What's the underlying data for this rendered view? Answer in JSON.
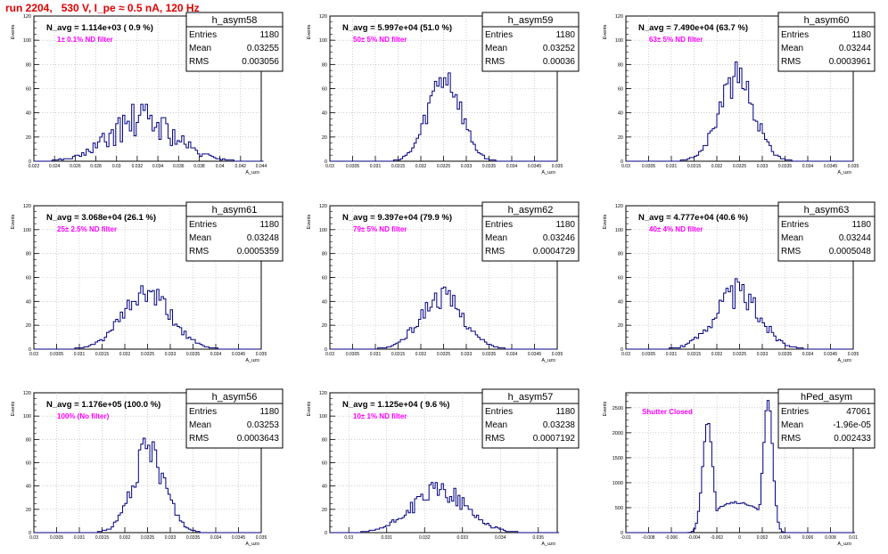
{
  "page_title": "run 2204,   530 V, I_pe ≈ 0.5 nA, 120 Hz",
  "colors": {
    "line": "#000080",
    "annotation": "#ff00ff",
    "title": "#e00000",
    "grid": "#b0b0b0"
  },
  "stat_labels": {
    "entries": "Entries",
    "mean": "Mean",
    "rms": "RMS"
  },
  "chart_data": [
    {
      "type": "bar",
      "name": "h_asym58",
      "header": "N_avg = 1.114e+03 ( 0.9 %)",
      "note": "1± 0.1% ND filter",
      "entries": "1180",
      "mean": "0.03255",
      "rms": "0.003056",
      "ylabel": "Events",
      "xlabel": "A_uzo",
      "xlim": [
        0.022,
        0.044
      ],
      "ylim": [
        0,
        120
      ],
      "yticks": [
        "0",
        "20",
        "40",
        "60",
        "80",
        "100",
        "120"
      ],
      "xticks": [
        "0.022",
        "0.024",
        "0.026",
        "0.028",
        "0.03",
        "0.032",
        "0.034",
        "0.036",
        "0.038",
        "0.04",
        "0.042",
        "0.044"
      ],
      "center": 0.0325,
      "sigma": 0.0031,
      "peak": 34,
      "bin": 0.00022,
      "seed": 58,
      "noise": 0.45
    },
    {
      "type": "bar",
      "name": "h_asym59",
      "header": "N_avg = 5.997e+04 (51.0 %)",
      "note": "50± 5% ND filter",
      "entries": "1180",
      "mean": "0.03252",
      "rms": "0.00036",
      "ylabel": "Events",
      "xlabel": "A_uzo",
      "xlim": [
        0.03,
        0.035
      ],
      "ylim": [
        0,
        120
      ],
      "yticks": [
        "0",
        "20",
        "40",
        "60",
        "80",
        "100",
        "120"
      ],
      "xticks": [
        "0.03",
        "0.0305",
        "0.031",
        "0.0315",
        "0.032",
        "0.0325",
        "0.033",
        "0.0335",
        "0.034",
        "0.0345",
        "0.035"
      ],
      "center": 0.03252,
      "sigma": 0.00036,
      "peak": 70,
      "bin": 5e-05,
      "seed": 59,
      "noise": 0.22
    },
    {
      "type": "bar",
      "name": "h_asym60",
      "header": "N_avg = 7.490e+04 (63.7 %)",
      "note": "63± 5% ND filter",
      "entries": "1180",
      "mean": "0.03244",
      "rms": "0.0003961",
      "ylabel": "Events",
      "xlabel": "A_uzo",
      "xlim": [
        0.03,
        0.035
      ],
      "ylim": [
        0,
        120
      ],
      "yticks": [
        "0",
        "20",
        "40",
        "60",
        "80",
        "100",
        "120"
      ],
      "xticks": [
        "0.03",
        "0.0305",
        "0.031",
        "0.0315",
        "0.032",
        "0.0325",
        "0.033",
        "0.0335",
        "0.034",
        "0.0345",
        "0.035"
      ],
      "center": 0.03244,
      "sigma": 0.00039,
      "peak": 68,
      "bin": 5e-05,
      "seed": 60,
      "noise": 0.22
    },
    {
      "type": "bar",
      "name": "h_asym61",
      "header": "N_avg = 3.068e+04 (26.1 %)",
      "note": "25± 2.5% ND filter",
      "entries": "1180",
      "mean": "0.03248",
      "rms": "0.0005359",
      "ylabel": "Events",
      "xlabel": "A_uzo",
      "xlim": [
        0.03,
        0.035
      ],
      "ylim": [
        0,
        120
      ],
      "yticks": [
        "0",
        "20",
        "40",
        "60",
        "80",
        "100",
        "120"
      ],
      "xticks": [
        "0.03",
        "0.0305",
        "0.031",
        "0.0315",
        "0.032",
        "0.0325",
        "0.033",
        "0.0335",
        "0.034",
        "0.0345",
        "0.035"
      ],
      "center": 0.03248,
      "sigma": 0.00053,
      "peak": 46,
      "bin": 5e-05,
      "seed": 61,
      "noise": 0.22
    },
    {
      "type": "bar",
      "name": "h_asym62",
      "header": "N_avg = 9.397e+04 (79.9 %)",
      "note": "79± 5% ND filter",
      "entries": "1180",
      "mean": "0.03246",
      "rms": "0.0004729",
      "ylabel": "Events",
      "xlabel": "A_uzo",
      "xlim": [
        0.03,
        0.035
      ],
      "ylim": [
        0,
        120
      ],
      "yticks": [
        "0",
        "20",
        "40",
        "60",
        "80",
        "100",
        "120"
      ],
      "xticks": [
        "0.03",
        "0.0305",
        "0.031",
        "0.0315",
        "0.032",
        "0.0325",
        "0.033",
        "0.0335",
        "0.034",
        "0.0345",
        "0.035"
      ],
      "center": 0.03246,
      "sigma": 0.00047,
      "peak": 44,
      "bin": 5e-05,
      "seed": 62,
      "noise": 0.22
    },
    {
      "type": "bar",
      "name": "h_asym63",
      "header": "N_avg = 4.777e+04 (40.6 %)",
      "note": "40± 4% ND filter",
      "entries": "1180",
      "mean": "0.03244",
      "rms": "0.0005048",
      "ylabel": "Events",
      "xlabel": "A_uzo",
      "xlim": [
        0.03,
        0.035
      ],
      "ylim": [
        0,
        120
      ],
      "yticks": [
        "0",
        "20",
        "40",
        "60",
        "80",
        "100",
        "120"
      ],
      "xticks": [
        "0.03",
        "0.0305",
        "0.031",
        "0.0315",
        "0.032",
        "0.0325",
        "0.033",
        "0.0335",
        "0.034",
        "0.0345",
        "0.035"
      ],
      "center": 0.03244,
      "sigma": 0.0005,
      "peak": 46,
      "bin": 5e-05,
      "seed": 63,
      "noise": 0.28
    },
    {
      "type": "bar",
      "name": "h_asym56",
      "header": "N_avg = 1.176e+05 (100.0 %)",
      "note": "100% (No filter)",
      "entries": "1180",
      "mean": "0.03253",
      "rms": "0.0003643",
      "ylabel": "Events",
      "xlabel": "A_uzo",
      "xlim": [
        0.03,
        0.035
      ],
      "ylim": [
        0,
        120
      ],
      "yticks": [
        "0",
        "20",
        "40",
        "60",
        "80",
        "100",
        "120"
      ],
      "xticks": [
        "0.03",
        "0.0305",
        "0.031",
        "0.0315",
        "0.032",
        "0.0325",
        "0.033",
        "0.0335",
        "0.034",
        "0.0345",
        "0.035"
      ],
      "center": 0.03253,
      "sigma": 0.00036,
      "peak": 68,
      "bin": 5e-05,
      "seed": 56,
      "noise": 0.24
    },
    {
      "type": "bar",
      "name": "h_asym57",
      "header": "N_avg = 1.125e+04 ( 9.6 %)",
      "note": "10± 1% ND filter",
      "entries": "1180",
      "mean": "0.03238",
      "rms": "0.0007192",
      "ylabel": "Events",
      "xlabel": "A_uzo",
      "xlim": [
        0.0295,
        0.0355
      ],
      "ylim": [
        0,
        120
      ],
      "yticks": [
        "0",
        "20",
        "40",
        "60",
        "80",
        "100",
        "120"
      ],
      "xticks": [
        "0.03",
        "0.031",
        "0.032",
        "0.033",
        "0.034",
        "0.035"
      ],
      "center": 0.03238,
      "sigma": 0.00072,
      "peak": 36,
      "bin": 5.45e-05,
      "seed": 57,
      "noise": 0.25
    },
    {
      "type": "bar",
      "name": "hPed_asym",
      "header": "",
      "note": "Shutter Closed",
      "entries": "47061",
      "mean": "-1.96e-05",
      "rms": "0.002433",
      "ylabel": "Events",
      "xlabel": "A_uzo",
      "xlim": [
        -0.01,
        0.01
      ],
      "ylim": [
        0,
        2800
      ],
      "yticks": [
        "0",
        "500",
        "1000",
        "1500",
        "2000",
        "2500"
      ],
      "xticks": [
        "-0.01",
        "-0.008",
        "-0.006",
        "-0.004",
        "-0.002",
        "0",
        "0.002",
        "0.004",
        "0.006",
        "0.008",
        "0.01"
      ],
      "bimodal": true,
      "peaks": [
        -0.0028,
        0.0025
      ],
      "peak_height": [
        2200,
        2700
      ],
      "trough": 620,
      "bin": 0.00018,
      "seed": 64,
      "noise": 0.04
    }
  ]
}
